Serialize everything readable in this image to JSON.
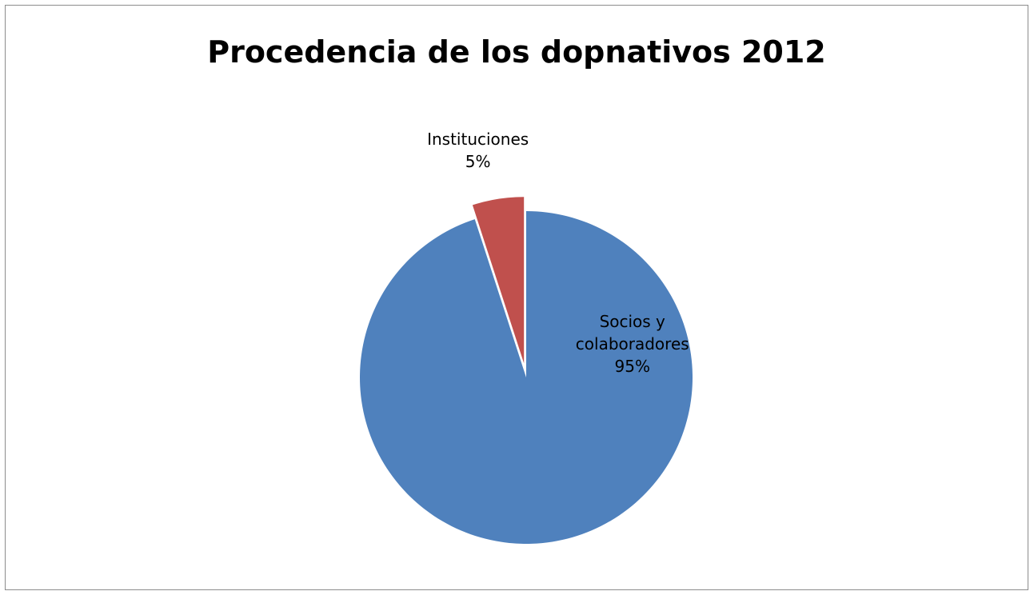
{
  "chart_data": {
    "type": "pie",
    "title": "Procedencia de los dopnativos 2012",
    "categories": [
      "Socios y colaboradores",
      "Instituciones"
    ],
    "values": [
      95,
      5
    ],
    "labels": [
      {
        "lines": [
          "Socios y",
          "colaboradores",
          "95%"
        ]
      },
      {
        "lines": [
          "Instituciones",
          "5%"
        ]
      }
    ],
    "colors": [
      "#4f81bd",
      "#c0504d"
    ],
    "exploded": [
      false,
      true
    ],
    "legend": "none"
  }
}
